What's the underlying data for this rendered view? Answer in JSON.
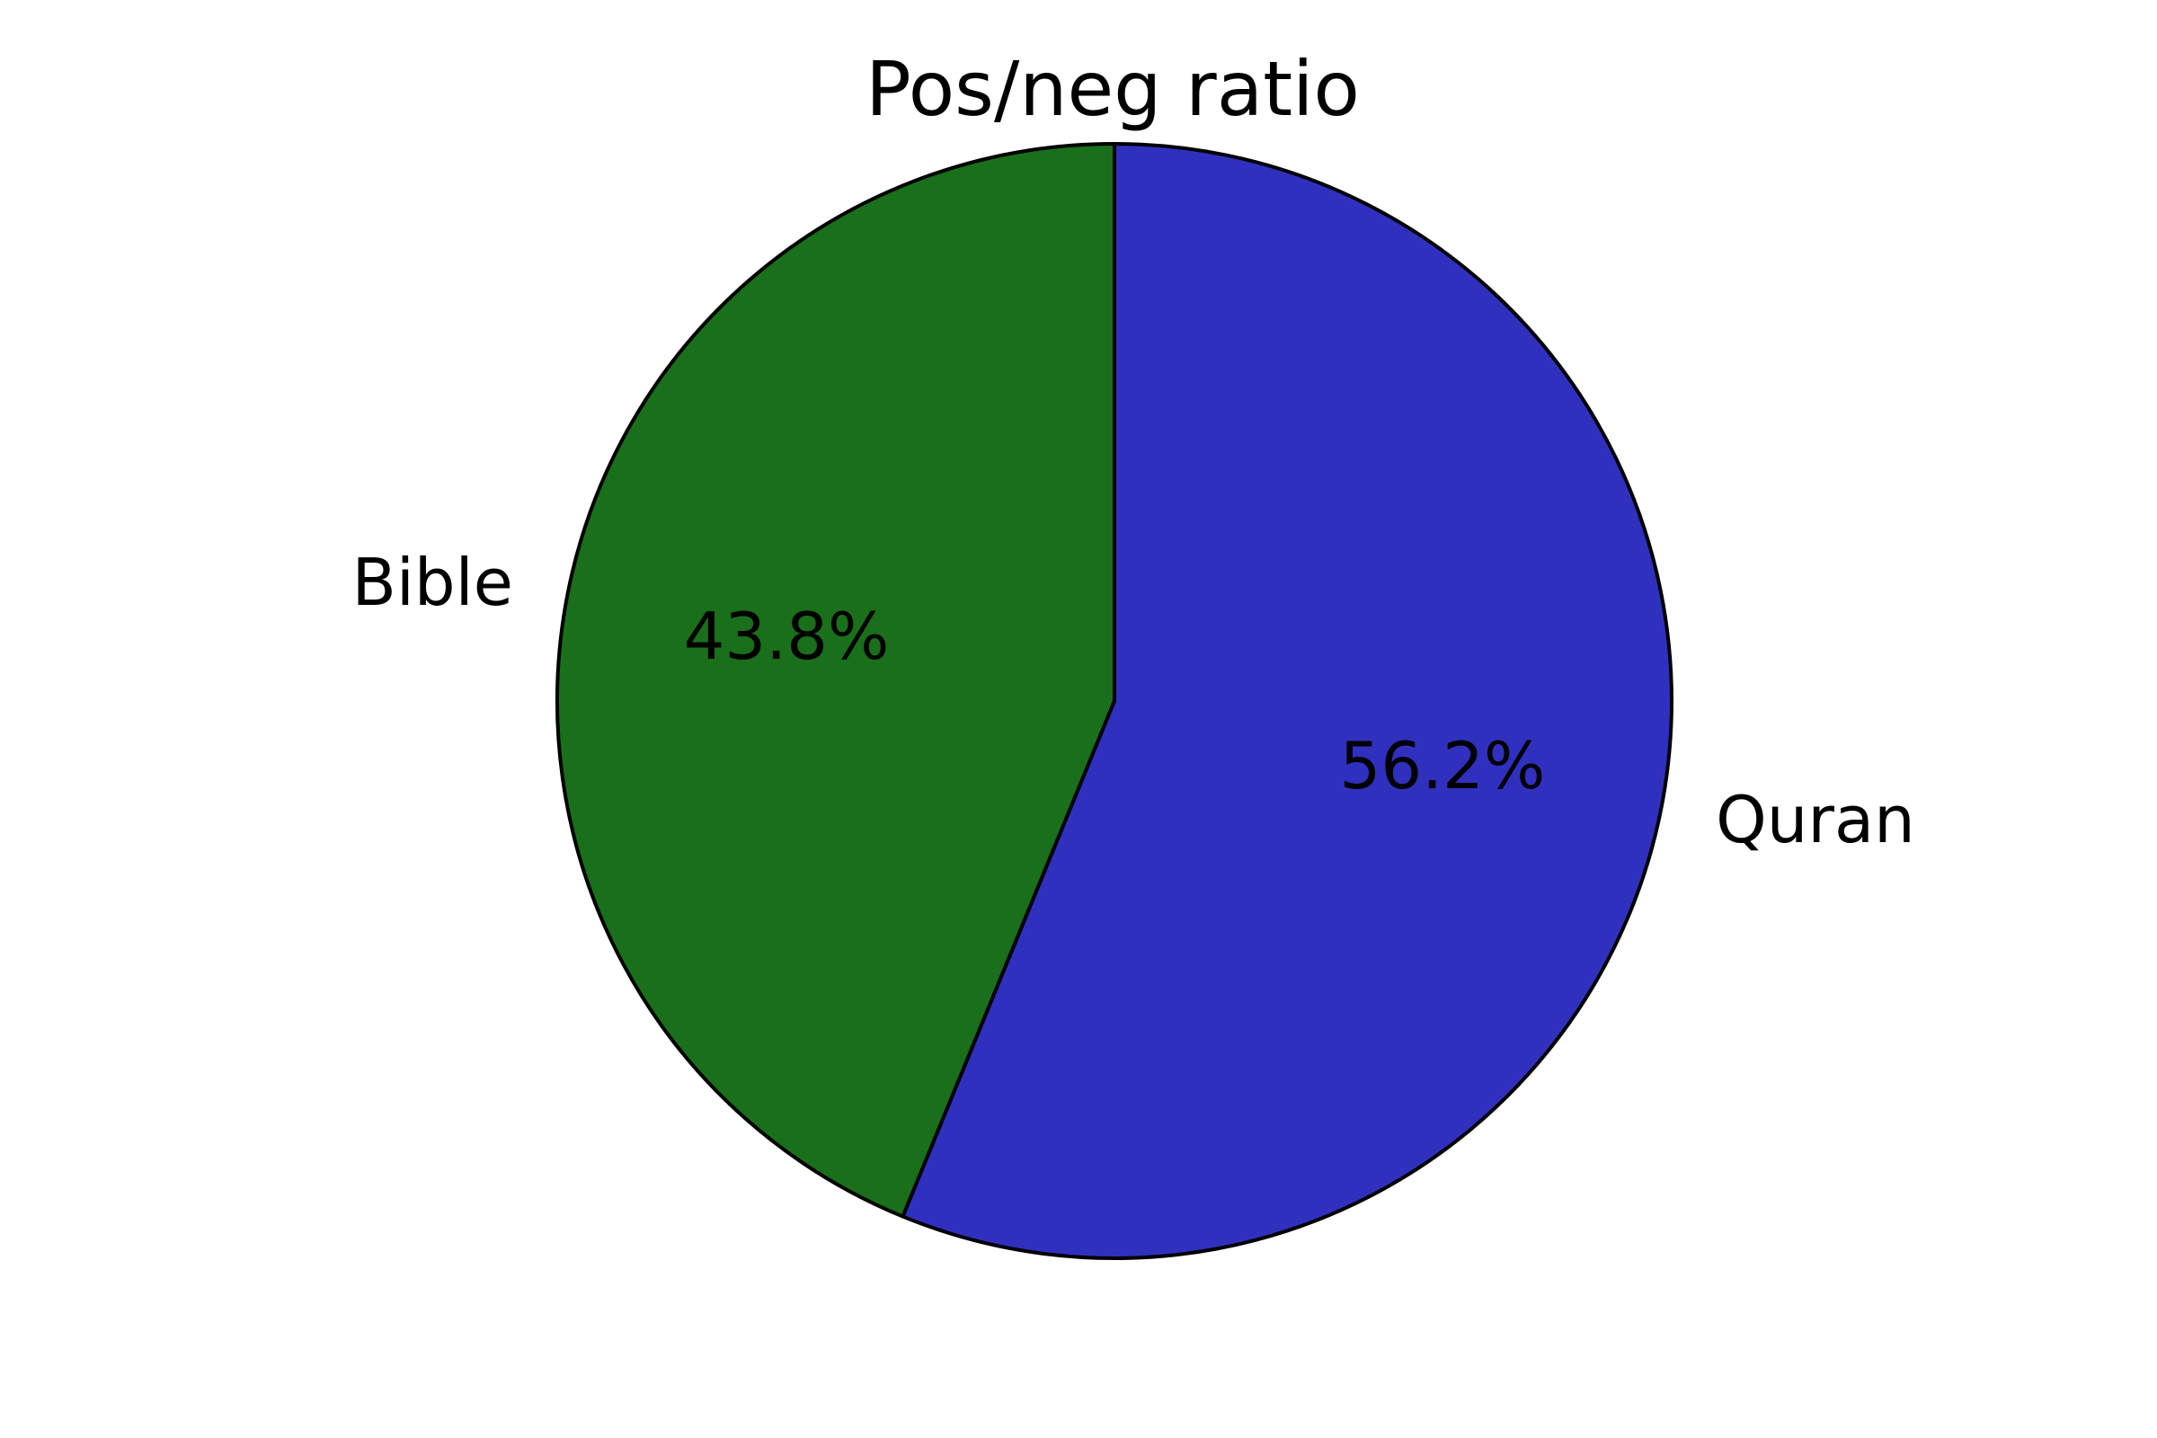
{
  "chart_data": {
    "type": "pie",
    "title": "Pos/neg ratio",
    "start": "top",
    "direction": "counterclockwise",
    "slices": [
      {
        "label": "Bible",
        "value": 43.8,
        "pct_label": "43.8%",
        "color": "#1a6f1a"
      },
      {
        "label": "Quran",
        "value": 56.2,
        "pct_label": "56.2%",
        "color": "#3030bf"
      }
    ]
  }
}
